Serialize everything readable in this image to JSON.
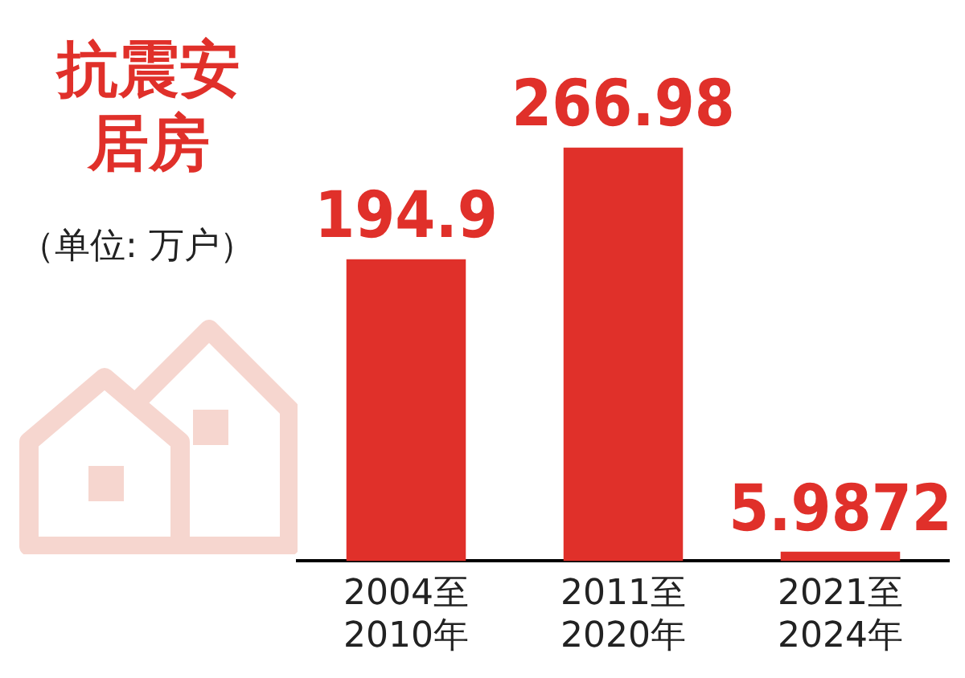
{
  "chart_data": {
    "type": "bar",
    "title": "抗震安居房",
    "subtitle": "（单位: 万户）",
    "categories": [
      "2004至\n2010年",
      "2011至\n2020年",
      "2021至\n2024年"
    ],
    "values": [
      194.9,
      266.98,
      5.9872
    ],
    "color": "#e0302a",
    "data_labels": true,
    "grid": false,
    "legend": false
  }
}
